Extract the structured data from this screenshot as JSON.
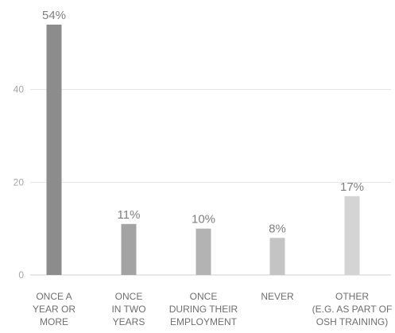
{
  "chart_data": {
    "type": "bar",
    "categories": [
      [
        "ONCE A",
        "YEAR OR",
        "MORE"
      ],
      [
        "ONCE",
        "IN TWO",
        "YEARS"
      ],
      [
        "ONCE",
        "DURING THEIR",
        "EMPLOYMENT"
      ],
      [
        "NEVER"
      ],
      [
        "OTHER",
        "(E.G. AS PART OF",
        "OSH TRAINING)"
      ]
    ],
    "values": [
      54,
      11,
      10,
      8,
      17
    ],
    "data_labels": [
      "54%",
      "11%",
      "10%",
      "8%",
      "17%"
    ],
    "colors": [
      "#8c8c8c",
      "#a3a3a3",
      "#b3b3b3",
      "#c4c4c4",
      "#d4d4d4"
    ],
    "yticks": [
      0,
      20,
      40
    ],
    "ylim": [
      0,
      54
    ],
    "grid": true,
    "title": "",
    "xlabel": "",
    "ylabel": ""
  }
}
